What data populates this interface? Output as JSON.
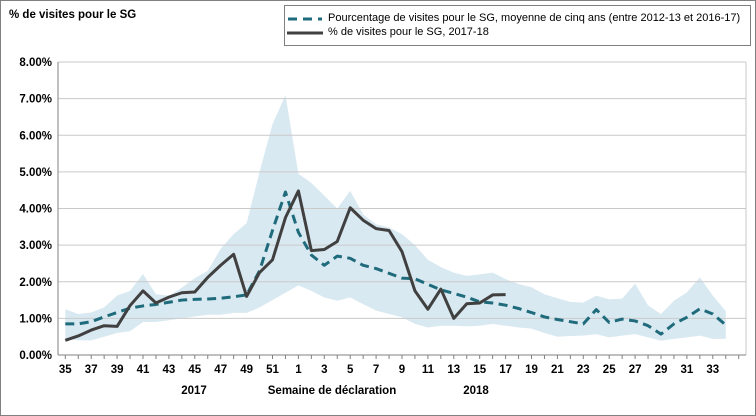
{
  "chart_data": {
    "type": "line",
    "ylabel_title": "% de visites pour le SG",
    "xlabel": "Semaine de déclaration",
    "year_labels": [
      "2017",
      "2018"
    ],
    "ylim": [
      0,
      8
    ],
    "y_ticks": [
      "8.00%",
      "7.00%",
      "6.00%",
      "5.00%",
      "4.00%",
      "3.00%",
      "2.00%",
      "1.00%",
      "0.00%"
    ],
    "x_tick_step": 2,
    "grid": "horizontal",
    "legend_position": "top",
    "x_categories": [
      "35",
      "36",
      "37",
      "38",
      "39",
      "40",
      "41",
      "42",
      "43",
      "44",
      "45",
      "46",
      "47",
      "48",
      "49",
      "50",
      "51",
      "52",
      "1",
      "2",
      "3",
      "4",
      "5",
      "6",
      "7",
      "8",
      "9",
      "10",
      "11",
      "12",
      "13",
      "14",
      "15",
      "16",
      "17",
      "18",
      "19",
      "20",
      "21",
      "22",
      "23",
      "24",
      "25",
      "26",
      "27",
      "28",
      "29",
      "30",
      "31",
      "32",
      "33",
      "34"
    ],
    "series": [
      {
        "name": "Pourcentage de visites pour le SG, moyenne de cinq ans (entre 2012-13 et 2016-17)",
        "style": "dashed",
        "color": "#1f6b7c",
        "values": [
          0.85,
          0.85,
          0.91,
          1.04,
          1.16,
          1.28,
          1.34,
          1.38,
          1.44,
          1.5,
          1.52,
          1.53,
          1.55,
          1.59,
          1.64,
          2.3,
          3.4,
          4.45,
          3.35,
          2.73,
          2.45,
          2.7,
          2.64,
          2.45,
          2.36,
          2.23,
          2.1,
          2.08,
          1.93,
          1.78,
          1.68,
          1.58,
          1.45,
          1.42,
          1.36,
          1.27,
          1.16,
          1.04,
          0.97,
          0.91,
          0.85,
          1.24,
          0.89,
          0.98,
          0.93,
          0.8,
          0.57,
          0.85,
          1.03,
          1.26,
          1.12,
          0.82
        ]
      },
      {
        "name": "% de visites pour le SG, 2017-18",
        "style": "solid",
        "color": "#404040",
        "values": [
          0.4,
          0.52,
          0.68,
          0.8,
          0.78,
          1.35,
          1.75,
          1.42,
          1.58,
          1.7,
          1.72,
          2.12,
          2.45,
          2.75,
          1.6,
          2.25,
          2.6,
          3.75,
          4.48,
          2.85,
          2.88,
          3.1,
          4.02,
          3.68,
          3.45,
          3.4,
          2.82,
          1.75,
          1.25,
          1.8,
          1.0,
          1.4,
          1.42,
          1.64,
          1.65,
          null,
          null,
          null,
          null,
          null,
          null,
          null,
          null,
          null,
          null,
          null,
          null,
          null,
          null,
          null,
          null,
          null
        ]
      }
    ],
    "band": {
      "name": "plage-moyenne-cinq-ans",
      "color": "#d9e9f1",
      "upper": [
        1.25,
        1.12,
        1.16,
        1.3,
        1.62,
        1.75,
        2.21,
        1.66,
        1.62,
        1.84,
        2.1,
        2.3,
        2.9,
        3.3,
        3.6,
        5.0,
        6.3,
        7.1,
        4.95,
        4.7,
        4.35,
        4.0,
        4.48,
        3.84,
        3.57,
        3.48,
        3.3,
        3.0,
        2.6,
        2.4,
        2.25,
        2.16,
        2.2,
        2.25,
        2.07,
        1.94,
        1.85,
        1.66,
        1.55,
        1.45,
        1.43,
        1.62,
        1.52,
        1.54,
        1.95,
        1.35,
        1.12,
        1.48,
        1.71,
        2.12,
        1.62,
        1.2
      ],
      "lower": [
        0.45,
        0.4,
        0.4,
        0.5,
        0.6,
        0.65,
        0.9,
        0.9,
        0.95,
        1.0,
        1.05,
        1.1,
        1.1,
        1.15,
        1.15,
        1.3,
        1.5,
        1.7,
        1.9,
        1.75,
        1.57,
        1.48,
        1.57,
        1.39,
        1.21,
        1.12,
        1.03,
        0.85,
        0.75,
        0.8,
        0.8,
        0.78,
        0.8,
        0.85,
        0.8,
        0.75,
        0.72,
        0.6,
        0.5,
        0.52,
        0.53,
        0.57,
        0.48,
        0.53,
        0.57,
        0.48,
        0.39,
        0.44,
        0.48,
        0.53,
        0.44,
        0.44
      ]
    },
    "colors": {
      "gridline": "#c9c9c9",
      "axis": "#808080",
      "text": "#000000"
    },
    "year_label_positions": {
      "y2017_x": 193,
      "xlabel_x": 331,
      "y2018_x": 475
    }
  }
}
